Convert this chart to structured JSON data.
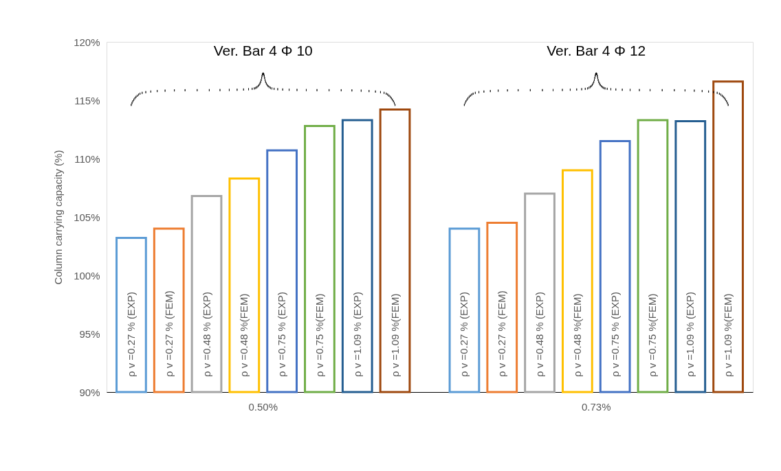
{
  "chart_data": {
    "type": "bar",
    "ylabel": "Column carrying capacity (%)",
    "categories": [
      "0.50%",
      "0.73%"
    ],
    "series": [
      {
        "name": "ρ v =0.27 % (EXP)",
        "color": "#5b9bd5",
        "values": [
          103.2,
          104.0
        ]
      },
      {
        "name": "ρ v =0.27 % (FEM)",
        "color": "#ed7d31",
        "values": [
          104.0,
          104.5
        ]
      },
      {
        "name": "ρ v =0.48 % (EXP)",
        "color": "#a5a5a5",
        "values": [
          106.8,
          107.0
        ]
      },
      {
        "name": "ρ v =0.48 %(FEM)",
        "color": "#ffc000",
        "values": [
          108.3,
          109.0
        ]
      },
      {
        "name": "ρ v =0.75 % (EXP)",
        "color": "#4472c4",
        "values": [
          110.7,
          111.5
        ]
      },
      {
        "name": "ρ v =0.75  %(FEM)",
        "color": "#70ad47",
        "values": [
          112.8,
          113.3
        ]
      },
      {
        "name": "ρ v =1.09 % (EXP)",
        "color": "#255e91",
        "values": [
          113.3,
          113.2
        ]
      },
      {
        "name": "ρ v =1.09  %(FEM)",
        "color": "#9e480e",
        "values": [
          114.2,
          116.6
        ]
      }
    ],
    "ylim": [
      90,
      120
    ],
    "yticks": [
      {
        "value": 90,
        "label": "90%"
      },
      {
        "value": 95,
        "label": "95%"
      },
      {
        "value": 100,
        "label": "100%"
      },
      {
        "value": 105,
        "label": "105%"
      },
      {
        "value": 110,
        "label": "110%"
      },
      {
        "value": 115,
        "label": "115%"
      },
      {
        "value": 120,
        "label": "120%"
      }
    ],
    "annotations": [
      "Ver. Bar 4 Φ 10",
      "Ver. Bar 4 Φ 12"
    ],
    "grid": false,
    "legend": false
  }
}
